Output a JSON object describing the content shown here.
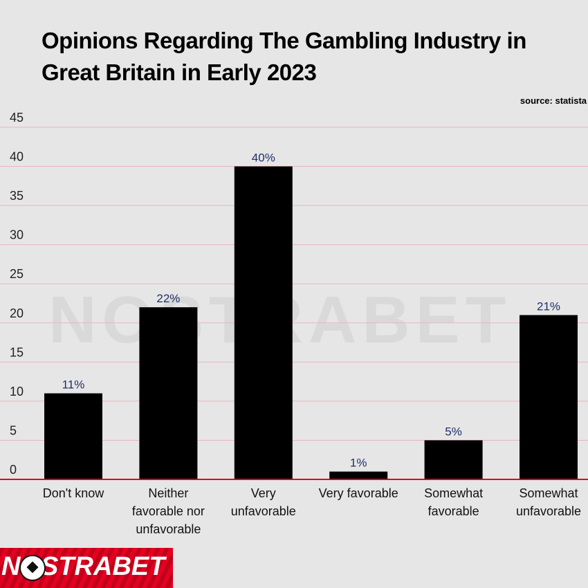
{
  "title": "Opinions Regarding The Gambling Industry in Great Britain in Early 2023",
  "source": "source: statista",
  "watermark": "NOSTRABET",
  "logo": "NOSTRABET",
  "colors": {
    "background": "#e6e6e6",
    "bar": "#000000",
    "value_label": "#1f2f6b",
    "gridline": "#e7b6bd",
    "baseline": "#e0001b"
  },
  "chart_data": {
    "type": "bar",
    "title": "Opinions Regarding The Gambling Industry in Great Britain in Early 2023",
    "categories": [
      "Don't know",
      "Neither favorable nor unfavorable",
      "Very unfavorable",
      "Very favorable",
      "Somewhat favorable",
      "Somewhat unfavorable"
    ],
    "category_lines": [
      [
        "Don't know"
      ],
      [
        "Neither",
        "favorable nor",
        "unfavorable"
      ],
      [
        "Very",
        "unfavorable"
      ],
      [
        "Very favorable"
      ],
      [
        "Somewhat",
        "favorable"
      ],
      [
        "Somewhat",
        "unfavorable"
      ]
    ],
    "values": [
      11,
      22,
      40,
      1,
      5,
      21
    ],
    "value_labels": [
      "11%",
      "22%",
      "40%",
      "1%",
      "5%",
      "21%"
    ],
    "yticks": [
      0,
      5,
      10,
      15,
      20,
      25,
      30,
      35,
      40,
      45
    ],
    "ylim": [
      0,
      45
    ],
    "grid": true,
    "xlabel": "",
    "ylabel": ""
  }
}
